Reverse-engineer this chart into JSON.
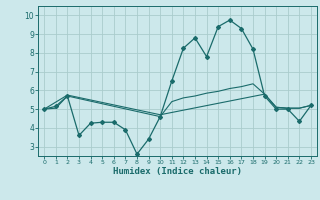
{
  "xlabel": "Humidex (Indice chaleur)",
  "background_color": "#cce8eb",
  "grid_color": "#aacccc",
  "line_color": "#1a6b6b",
  "xlim": [
    -0.5,
    23.5
  ],
  "ylim": [
    2.5,
    10.5
  ],
  "yticks": [
    3,
    4,
    5,
    6,
    7,
    8,
    9,
    10
  ],
  "xticks": [
    0,
    1,
    2,
    3,
    4,
    5,
    6,
    7,
    8,
    9,
    10,
    11,
    12,
    13,
    14,
    15,
    16,
    17,
    18,
    19,
    20,
    21,
    22,
    23
  ],
  "line1_x": [
    0,
    1,
    2,
    3,
    4,
    5,
    6,
    7,
    8,
    9,
    10,
    11,
    12,
    13,
    14,
    15,
    16,
    17,
    18,
    19,
    20,
    21,
    22,
    23
  ],
  "line1_y": [
    5.0,
    5.15,
    5.7,
    3.6,
    4.25,
    4.3,
    4.3,
    3.9,
    2.6,
    3.4,
    4.6,
    6.5,
    8.25,
    8.8,
    7.8,
    9.4,
    9.75,
    9.3,
    8.2,
    5.7,
    5.0,
    5.0,
    4.35,
    5.2
  ],
  "line2_x": [
    0,
    2,
    10,
    19,
    20,
    21,
    22,
    23
  ],
  "line2_y": [
    5.0,
    5.75,
    4.7,
    5.8,
    5.1,
    5.05,
    5.05,
    5.2
  ],
  "line3_x": [
    0,
    1,
    2,
    10,
    11,
    12,
    13,
    14,
    15,
    16,
    17,
    18,
    19,
    20,
    21,
    22,
    23
  ],
  "line3_y": [
    5.0,
    5.05,
    5.7,
    4.6,
    5.4,
    5.6,
    5.7,
    5.85,
    5.95,
    6.1,
    6.2,
    6.35,
    5.8,
    5.1,
    5.05,
    5.05,
    5.2
  ]
}
